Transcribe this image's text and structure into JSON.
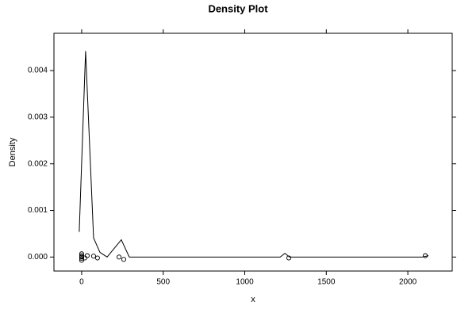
{
  "chart_data": {
    "type": "density",
    "title": "Density Plot",
    "xlabel": "x",
    "ylabel": "Density",
    "color": "#000000",
    "xlim": [
      -170,
      2272
    ],
    "ylim": [
      -0.0003,
      0.0048
    ],
    "xticks": [
      0,
      500,
      1000,
      1500,
      2000
    ],
    "yticks": [
      {
        "value": 0,
        "label": "0.000"
      },
      0.001,
      0.002,
      0.003,
      0.004
    ],
    "x": [
      -15,
      24,
      73,
      112,
      156,
      243,
      292,
      1217,
      1246,
      1275,
      2088,
      2127
    ],
    "values": [
      0.00054,
      0.00442,
      0.00041,
      0.0001,
      0,
      0.00037,
      0,
      0,
      8e-05,
      0,
      0,
      3e-05
    ],
    "points": {
      "x": [
        0,
        0,
        0,
        0,
        0,
        19,
        34,
        73,
        97,
        229,
        258,
        1270,
        2107
      ],
      "y": [
        7e-05,
        3e-05,
        0,
        -3e-05,
        -7e-05,
        -2e-05,
        3e-05,
        2e-05,
        -2e-05,
        0,
        -5e-05,
        -2e-05,
        3e-05
      ]
    }
  }
}
